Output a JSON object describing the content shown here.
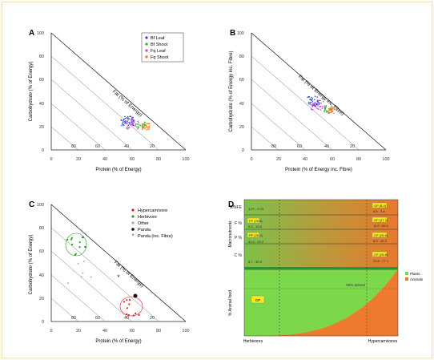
{
  "panels": {
    "A": {
      "letter": "A",
      "x_label": "Protein (% of Energy)",
      "y_label": "Carbohydrate (% of Energy)",
      "diag_label": "Fat (% of Energy)",
      "ticks": [
        "0",
        "20",
        "40",
        "60",
        "80",
        "100"
      ],
      "fat_ticks": [
        "80",
        "60",
        "40",
        "20"
      ],
      "legend": [
        {
          "label": "Bf Leaf",
          "color": "#2b3fd9"
        },
        {
          "label": "Bf Shoot",
          "color": "#3fae3f"
        },
        {
          "label": "Fq Leaf",
          "color": "#d63fd6"
        },
        {
          "label": "Fq Shoot",
          "color": "#f07a1a"
        }
      ]
    },
    "B": {
      "letter": "B",
      "x_label": "Protein (% of Energy inc. Fibre)",
      "y_label": "Carbohydrate (% of Energy inc. Fibre)",
      "diag_label": "Fat (% of Energy inc. Fibre)",
      "ticks": [
        "0",
        "20",
        "40",
        "60",
        "80",
        "100"
      ],
      "fat_ticks": [
        "80",
        "60",
        "40",
        "20"
      ]
    },
    "C": {
      "letter": "C",
      "x_label": "Protein (% of Energy)",
      "y_label": "Carbohydrate (% of Energy)",
      "diag_label": "Fat (% of Energy)",
      "ticks": [
        "0",
        "20",
        "40",
        "60",
        "80",
        "100"
      ],
      "fat_ticks": [
        "80",
        "60",
        "40",
        "20"
      ],
      "legend": [
        {
          "label": "Hypercarnivore",
          "color": "#e02020"
        },
        {
          "label": "Herbivore",
          "color": "#2a9a2a"
        },
        {
          "label": "Other",
          "color": "#aaaaaa"
        },
        {
          "label": "Panda",
          "color": "#111111"
        },
        {
          "label": "Panda (inc. Fibre)",
          "color": "#111111"
        }
      ]
    },
    "D": {
      "letter": "D",
      "y_top_label": "Macronutrients",
      "y_bottom_label": "% Animal food",
      "x_left": "Herbivores",
      "x_right": "Hypercarnivores",
      "row_labels": [
        "E/NFE",
        "F %",
        "P %",
        "C %"
      ],
      "threshold_label": "50% animal",
      "gp_label": "GP",
      "legend": [
        {
          "label": "Plants",
          "color": "#7cd84a"
        },
        {
          "label": "Animals",
          "color": "#ee7a2e"
        }
      ],
      "left_values": [
        "1.07 - 0.70",
        "FP (25.5)",
        "0.2 - 10.9",
        "PP (25.5)",
        "41.0 - 92.2",
        "6.7 - 32.9"
      ],
      "right_values": [
        "GP (8.4)",
        "0.5 - 3.4",
        "GP (27.1)",
        "11.9 - 60.9",
        "CP (25.6)",
        "8.0 - 45.3",
        "CP (25.8)",
        "23.8 - 77.1"
      ]
    }
  }
}
